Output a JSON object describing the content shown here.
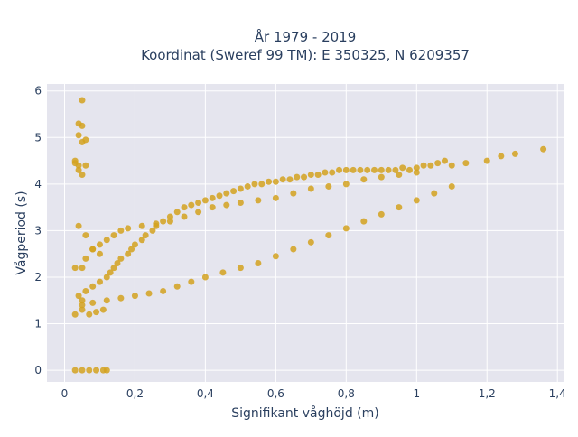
{
  "chart_data": {
    "type": "scatter",
    "title_line1": "År 1979 - 2019",
    "title_line2": "Koordinat (Sweref 99 TM): E 350325, N 6209357",
    "xlabel": "Signifikant våghöjd (m)",
    "ylabel": "Vågperiod (s)",
    "xlim": [
      -0.05,
      1.42
    ],
    "ylim": [
      -0.25,
      6.15
    ],
    "x_ticks": [
      0,
      0.2,
      0.4,
      0.6,
      0.8,
      1,
      1.2,
      1.4
    ],
    "x_tick_labels": [
      "0",
      "0,2",
      "0,4",
      "0,6",
      "0,8",
      "1",
      "1,2",
      "1,4"
    ],
    "y_ticks": [
      0,
      1,
      2,
      3,
      4,
      5,
      6
    ],
    "y_tick_labels": [
      "0",
      "1",
      "2",
      "3",
      "4",
      "5",
      "6"
    ],
    "grid": true,
    "marker_color": "#d4a21f",
    "plot_bg": "#e5e5ee",
    "series": [
      {
        "x": [
          0.03,
          0.05,
          0.07,
          0.09,
          0.11,
          0.12,
          0.03,
          0.05,
          0.07,
          0.09,
          0.11,
          0.04,
          0.05,
          0.06,
          0.08,
          0.1,
          0.12,
          0.13,
          0.14,
          0.15,
          0.16,
          0.18,
          0.19,
          0.2,
          0.22,
          0.23,
          0.25,
          0.26,
          0.28,
          0.3,
          0.32,
          0.34,
          0.36,
          0.38,
          0.4,
          0.42,
          0.44,
          0.46,
          0.48,
          0.5,
          0.52,
          0.54,
          0.56,
          0.58,
          0.6,
          0.62,
          0.64,
          0.66,
          0.68,
          0.7,
          0.72,
          0.74,
          0.76,
          0.78,
          0.8,
          0.82,
          0.84,
          0.86,
          0.88,
          0.9,
          0.92,
          0.94,
          0.96,
          0.98,
          1.0,
          1.02,
          1.04,
          1.06,
          1.08,
          1.1,
          1.14,
          1.2,
          1.24,
          1.28,
          1.36,
          0.05,
          0.08,
          0.12,
          0.16,
          0.2,
          0.24,
          0.28,
          0.32,
          0.36,
          0.4,
          0.45,
          0.5,
          0.55,
          0.6,
          0.65,
          0.7,
          0.75,
          0.8,
          0.85,
          0.9,
          0.95,
          1.0,
          1.05,
          1.1,
          0.05,
          0.06,
          0.08,
          0.1,
          0.12,
          0.14,
          0.16,
          0.18,
          0.22,
          0.26,
          0.3,
          0.34,
          0.38,
          0.42,
          0.46,
          0.5,
          0.55,
          0.6,
          0.65,
          0.7,
          0.75,
          0.8,
          0.85,
          0.9,
          0.95,
          1.0,
          0.03,
          0.04,
          0.05,
          0.06,
          0.04,
          0.05,
          0.03,
          0.04,
          0.04,
          0.05,
          0.06,
          0.05,
          0.03,
          0.04,
          0.06,
          0.08,
          0.1
        ],
        "y": [
          0,
          0,
          0,
          0,
          0,
          0,
          1.2,
          1.3,
          1.2,
          1.25,
          1.3,
          1.6,
          1.5,
          1.7,
          1.8,
          1.9,
          2.0,
          2.1,
          2.2,
          2.3,
          2.4,
          2.5,
          2.6,
          2.7,
          2.8,
          2.9,
          3.0,
          3.1,
          3.2,
          3.3,
          3.4,
          3.5,
          3.55,
          3.6,
          3.65,
          3.7,
          3.75,
          3.8,
          3.85,
          3.9,
          3.95,
          4.0,
          4.0,
          4.05,
          4.05,
          4.1,
          4.1,
          4.15,
          4.15,
          4.2,
          4.2,
          4.25,
          4.25,
          4.3,
          4.3,
          4.3,
          4.3,
          4.3,
          4.3,
          4.3,
          4.3,
          4.3,
          4.35,
          4.3,
          4.35,
          4.4,
          4.4,
          4.45,
          4.5,
          4.4,
          4.45,
          4.5,
          4.6,
          4.65,
          4.75,
          1.4,
          1.45,
          1.5,
          1.55,
          1.6,
          1.65,
          1.7,
          1.8,
          1.9,
          2.0,
          2.1,
          2.2,
          2.3,
          2.45,
          2.6,
          2.75,
          2.9,
          3.05,
          3.2,
          3.35,
          3.5,
          3.65,
          3.8,
          3.95,
          2.2,
          2.4,
          2.6,
          2.7,
          2.8,
          2.9,
          3.0,
          3.05,
          3.1,
          3.15,
          3.2,
          3.3,
          3.4,
          3.5,
          3.55,
          3.6,
          3.65,
          3.7,
          3.8,
          3.9,
          3.95,
          4.0,
          4.1,
          4.15,
          4.2,
          4.25,
          4.45,
          4.4,
          4.9,
          4.95,
          5.05,
          5.25,
          4.5,
          4.3,
          5.3,
          5.8,
          4.4,
          4.2,
          2.2,
          3.1,
          2.9,
          2.6,
          2.5
        ]
      }
    ]
  }
}
